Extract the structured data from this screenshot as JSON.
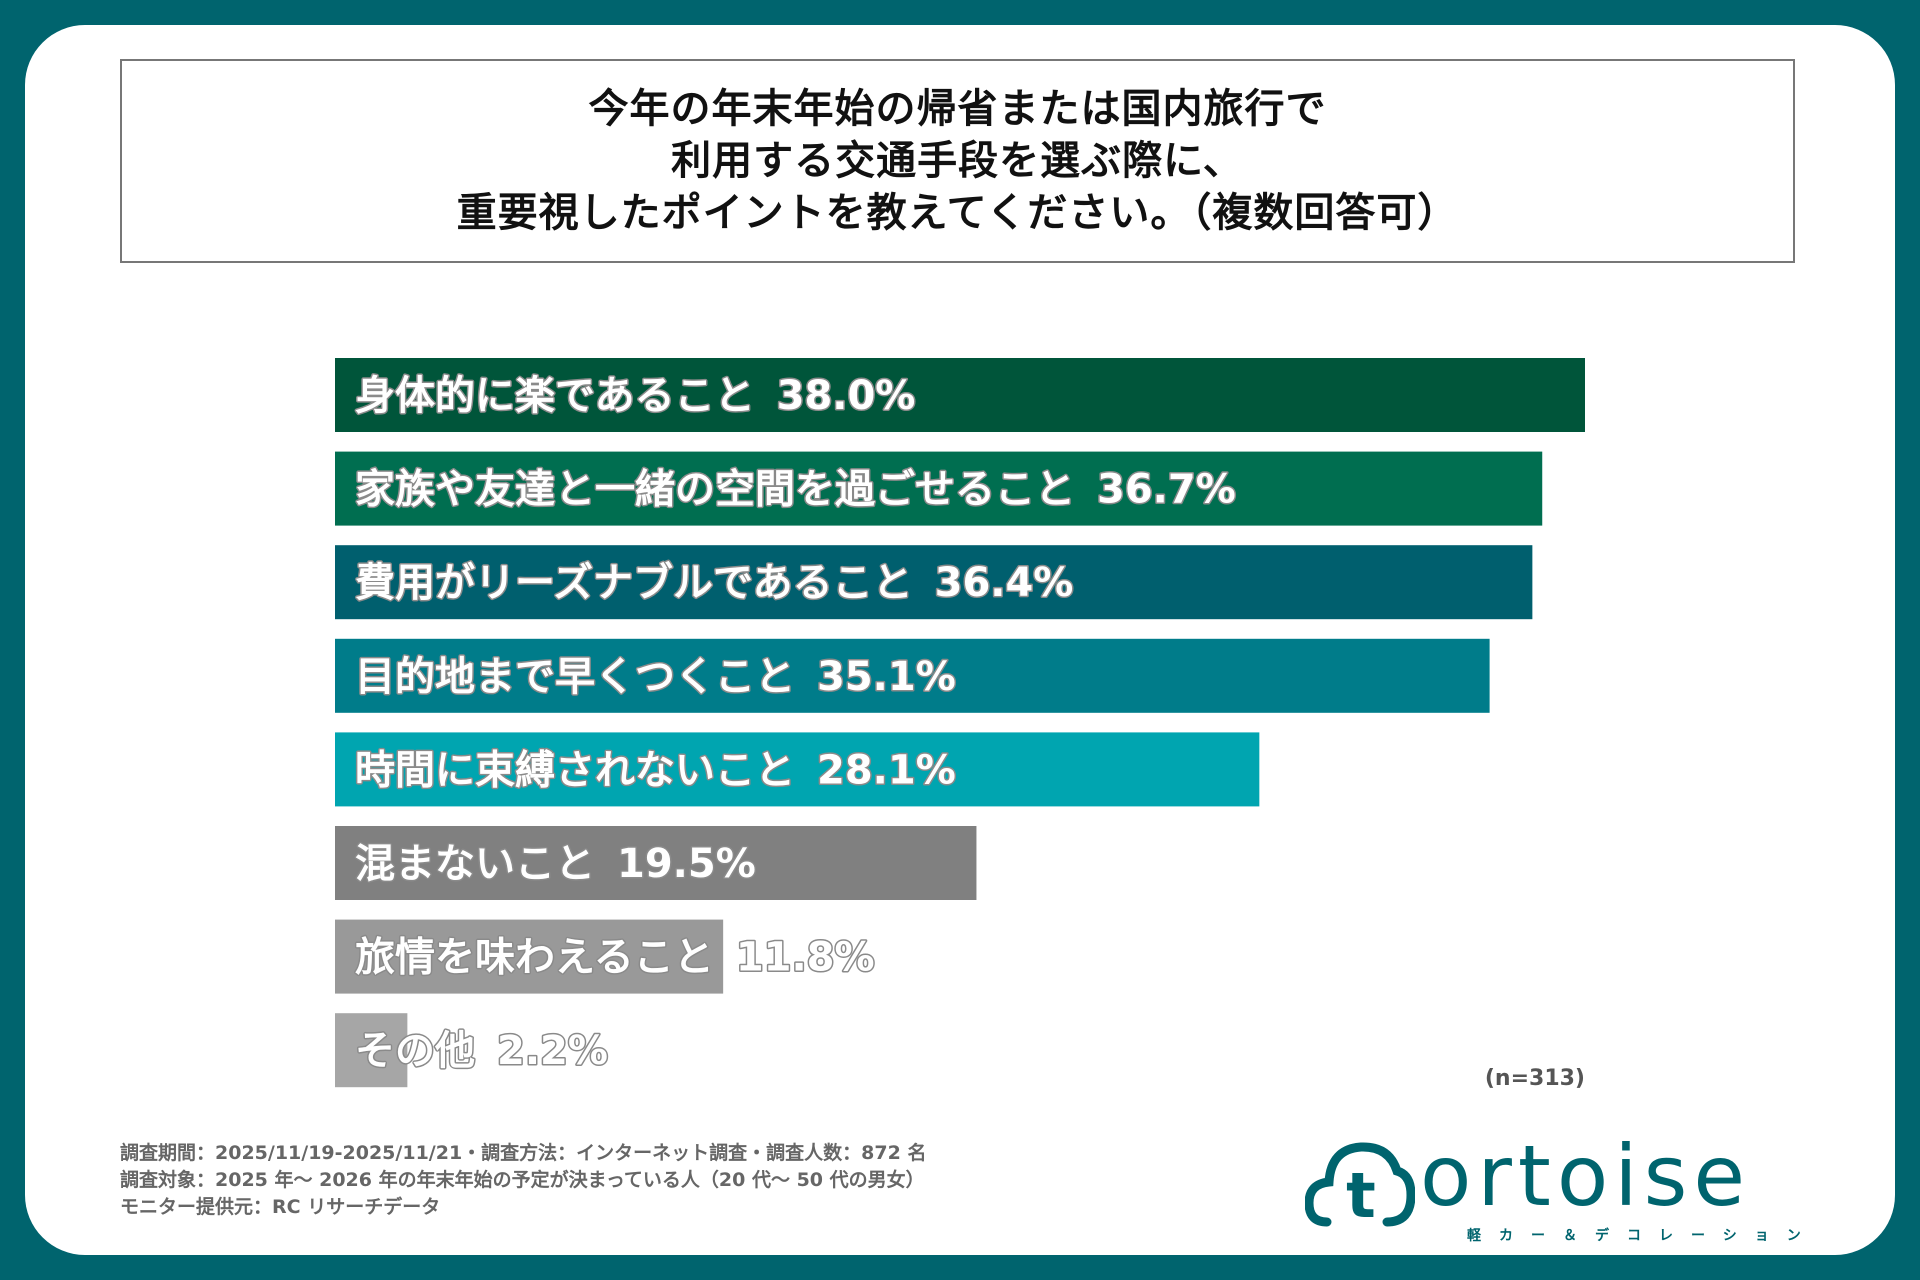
{
  "title_lines": [
    "今年の年末年始の帰省または国内旅行で",
    "利用する交通手段を選ぶ際に、",
    "重要視したポイントを教えてください。（複数回答可）"
  ],
  "chart_data": {
    "type": "bar",
    "orientation": "horizontal",
    "categories": [
      "身体的に楽であること",
      "家族や友達と一緒の空間を過ごせること",
      "費用がリーズナブルであること",
      "目的地まで早くつくこと",
      "時間に束縛されないこと",
      "混まないこと",
      "旅情を味わえること",
      "その他"
    ],
    "values": [
      38.0,
      36.7,
      36.4,
      35.1,
      28.1,
      19.5,
      11.8,
      2.2
    ],
    "value_labels": [
      "38.0%",
      "36.7%",
      "36.4%",
      "35.1%",
      "28.1%",
      "19.5%",
      "11.8%",
      "2.2%"
    ],
    "colors": [
      "#00553a",
      "#006e50",
      "#005f6e",
      "#007c8a",
      "#00a5b0",
      "#808080",
      "#999999",
      "#a6a6a6"
    ],
    "sample_note": "(n=313)",
    "axes_visible": false,
    "grid": false
  },
  "footnotes": [
    "調査期間：2025/11/19-2025/11/21・調査方法：インターネット調査・調査人数：872 名",
    "調査対象：2025 年～ 2026 年の年末年始の予定が決まっている人（20 代～ 50 代の男女）",
    "モニター提供元：RC リサーチデータ"
  ],
  "logo": {
    "text": "ortoise",
    "badge_letter": "t",
    "tagline": "軽カー＆デコレーション"
  },
  "colors": {
    "frame": "#00646e",
    "card": "#ffffff"
  }
}
